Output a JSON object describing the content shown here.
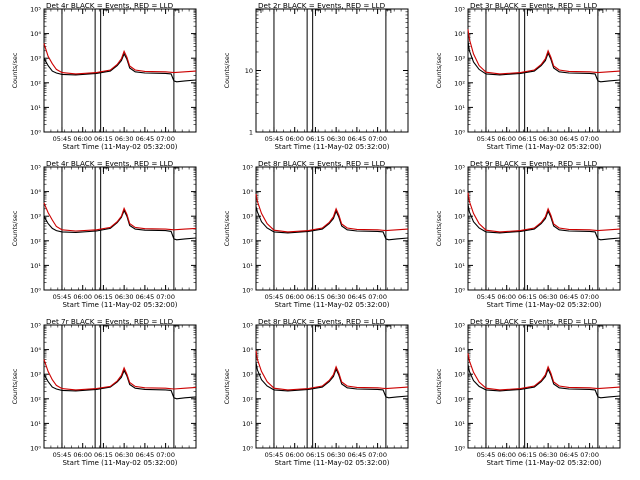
{
  "colors": {
    "events": "#000000",
    "lld": "#cc0000",
    "background": "#ffffff"
  },
  "common": {
    "xlabel": "Start Time (11-May-02 05:32:00)",
    "ylabel": "Counts/sec",
    "xticks": [
      "05:45",
      "06:00",
      "06:15",
      "06:30",
      "06:45",
      "07:00"
    ],
    "xrange": [
      "05:32",
      "07:22"
    ]
  },
  "chart_data": [
    {
      "type": "line",
      "title": "Det 4r BLACK = Events, RED = LLD",
      "yscale": "log",
      "ylim": [
        1,
        100000
      ],
      "yticks": [
        "10⁰",
        "10¹",
        "10²",
        "10³",
        "10⁴",
        "10⁵"
      ],
      "vlines": [
        "05:45",
        "06:09",
        "06:13",
        "07:06"
      ],
      "markers": [
        "06:15",
        "07:06"
      ],
      "series": [
        {
          "name": "Events",
          "color": "#000000",
          "x": [
            "05:32",
            "05:35",
            "05:38",
            "05:41",
            "05:45",
            "05:55",
            "06:10",
            "06:20",
            "06:25",
            "06:28",
            "06:30",
            "06:32",
            "06:34",
            "06:38",
            "06:45",
            "07:00",
            "07:04",
            "07:06",
            "07:08",
            "07:14",
            "07:22"
          ],
          "y": [
            1000,
            500,
            300,
            250,
            220,
            210,
            240,
            300,
            500,
            800,
            1500,
            900,
            400,
            280,
            250,
            240,
            230,
            120,
            110,
            120,
            130
          ]
        },
        {
          "name": "LLD",
          "color": "#cc0000",
          "x": [
            "05:32",
            "05:35",
            "05:38",
            "05:41",
            "05:45",
            "05:55",
            "06:10",
            "06:20",
            "06:25",
            "06:28",
            "06:30",
            "06:32",
            "06:34",
            "06:38",
            "06:45",
            "07:00",
            "07:06",
            "07:14",
            "07:22"
          ],
          "y": [
            4000,
            1200,
            600,
            350,
            260,
            230,
            260,
            330,
            560,
            950,
            1900,
            1100,
            480,
            330,
            290,
            280,
            260,
            280,
            300
          ]
        }
      ]
    },
    {
      "type": "line",
      "title": "Det 2r BLACK = Events, RED = LLD",
      "yscale": "log",
      "ylim": [
        1,
        100
      ],
      "yticks": [
        "1",
        "10"
      ],
      "vlines": [
        "05:45",
        "06:09",
        "06:13",
        "07:06"
      ],
      "markers": [
        "05:32",
        "06:15",
        "07:06"
      ],
      "series": []
    },
    {
      "type": "line",
      "title": "Det 3r BLACK = Events, RED = LLD",
      "yscale": "log",
      "ylim": [
        1,
        100000
      ],
      "yticks": [
        "10⁰",
        "10¹",
        "10²",
        "10³",
        "10⁴",
        "10⁵"
      ],
      "vlines": [
        "05:45",
        "06:09",
        "06:13",
        "07:06"
      ],
      "markers": [
        "06:15",
        "07:06"
      ],
      "series": [
        {
          "name": "Events",
          "color": "#000000",
          "x": [
            "05:32",
            "05:33",
            "05:36",
            "05:40",
            "05:45",
            "05:55",
            "06:10",
            "06:20",
            "06:25",
            "06:28",
            "06:30",
            "06:32",
            "06:34",
            "06:38",
            "06:45",
            "07:00",
            "07:04",
            "07:06",
            "07:08",
            "07:14",
            "07:22"
          ],
          "y": [
            5000,
            2000,
            700,
            350,
            230,
            210,
            240,
            300,
            500,
            800,
            1600,
            900,
            400,
            280,
            250,
            240,
            230,
            120,
            110,
            120,
            130
          ]
        },
        {
          "name": "LLD",
          "color": "#cc0000",
          "x": [
            "05:32",
            "05:33",
            "05:36",
            "05:40",
            "05:45",
            "05:55",
            "06:10",
            "06:20",
            "06:25",
            "06:28",
            "06:30",
            "06:32",
            "06:34",
            "06:38",
            "06:45",
            "07:00",
            "07:06",
            "07:14",
            "07:22"
          ],
          "y": [
            15000,
            6000,
            1500,
            500,
            270,
            230,
            260,
            330,
            560,
            950,
            2000,
            1100,
            480,
            330,
            290,
            280,
            260,
            280,
            300
          ]
        }
      ]
    },
    {
      "type": "line",
      "title": "Det 4r BLACK = Events, RED = LLD",
      "yscale": "log",
      "ylim": [
        1,
        100000
      ],
      "yticks": [
        "10⁰",
        "10¹",
        "10²",
        "10³",
        "10⁴",
        "10⁵"
      ],
      "vlines": [
        "05:45",
        "06:09",
        "06:13",
        "07:06"
      ],
      "markers": [
        "06:15",
        "07:06"
      ],
      "series": [
        {
          "name": "Events",
          "color": "#000000",
          "x": [
            "05:32",
            "05:35",
            "05:38",
            "05:41",
            "05:45",
            "05:55",
            "06:10",
            "06:20",
            "06:25",
            "06:28",
            "06:30",
            "06:32",
            "06:34",
            "06:38",
            "06:45",
            "07:00",
            "07:04",
            "07:06",
            "07:08",
            "07:14",
            "07:22"
          ],
          "y": [
            1000,
            500,
            320,
            260,
            230,
            220,
            250,
            320,
            550,
            900,
            1700,
            1000,
            420,
            300,
            270,
            260,
            240,
            120,
            110,
            120,
            130
          ]
        },
        {
          "name": "LLD",
          "color": "#cc0000",
          "x": [
            "05:32",
            "05:35",
            "05:38",
            "05:41",
            "05:45",
            "05:55",
            "06:10",
            "06:20",
            "06:25",
            "06:28",
            "06:30",
            "06:32",
            "06:34",
            "06:38",
            "06:45",
            "07:00",
            "07:06",
            "07:14",
            "07:22"
          ],
          "y": [
            3500,
            1400,
            700,
            380,
            280,
            250,
            280,
            350,
            600,
            1000,
            2100,
            1200,
            500,
            350,
            310,
            300,
            280,
            300,
            320
          ]
        }
      ]
    },
    {
      "type": "line",
      "title": "Det 8r BLACK = Events, RED = LLD",
      "yscale": "log",
      "ylim": [
        1,
        100000
      ],
      "yticks": [
        "10⁰",
        "10¹",
        "10²",
        "10³",
        "10⁴",
        "10⁵"
      ],
      "vlines": [
        "05:45",
        "06:09",
        "06:13",
        "07:06"
      ],
      "markers": [
        "06:15",
        "07:06"
      ],
      "series": [
        {
          "name": "Events",
          "color": "#000000",
          "x": [
            "05:32",
            "05:33",
            "05:36",
            "05:40",
            "05:45",
            "05:55",
            "06:10",
            "06:20",
            "06:25",
            "06:28",
            "06:30",
            "06:32",
            "06:34",
            "06:38",
            "06:45",
            "07:00",
            "07:04",
            "07:06",
            "07:08",
            "07:14",
            "07:22"
          ],
          "y": [
            2500,
            1500,
            600,
            330,
            230,
            210,
            240,
            300,
            500,
            800,
            1600,
            900,
            400,
            280,
            250,
            240,
            230,
            120,
            110,
            120,
            130
          ]
        },
        {
          "name": "LLD",
          "color": "#cc0000",
          "x": [
            "05:32",
            "05:33",
            "05:36",
            "05:40",
            "05:45",
            "05:55",
            "06:10",
            "06:20",
            "06:25",
            "06:28",
            "06:30",
            "06:32",
            "06:34",
            "06:38",
            "06:45",
            "07:00",
            "07:06",
            "07:14",
            "07:22"
          ],
          "y": [
            8000,
            4000,
            1300,
            500,
            270,
            230,
            260,
            330,
            560,
            950,
            2000,
            1100,
            480,
            330,
            290,
            280,
            260,
            280,
            300
          ]
        }
      ]
    },
    {
      "type": "line",
      "title": "Det 9r BLACK = Events, RED = LLD",
      "yscale": "log",
      "ylim": [
        1,
        100000
      ],
      "yticks": [
        "10⁰",
        "10¹",
        "10²",
        "10³",
        "10⁴",
        "10⁵"
      ],
      "vlines": [
        "05:45",
        "06:09",
        "06:13",
        "07:06"
      ],
      "markers": [
        "06:15",
        "07:06"
      ],
      "series": [
        {
          "name": "Events",
          "color": "#000000",
          "x": [
            "05:32",
            "05:33",
            "05:36",
            "05:40",
            "05:45",
            "05:55",
            "06:10",
            "06:20",
            "06:25",
            "06:28",
            "06:30",
            "06:32",
            "06:34",
            "06:38",
            "06:45",
            "07:00",
            "07:04",
            "07:06",
            "07:08",
            "07:14",
            "07:22"
          ],
          "y": [
            3000,
            1500,
            600,
            330,
            230,
            210,
            240,
            300,
            500,
            800,
            1600,
            900,
            400,
            280,
            250,
            240,
            230,
            120,
            110,
            120,
            130
          ]
        },
        {
          "name": "LLD",
          "color": "#cc0000",
          "x": [
            "05:32",
            "05:33",
            "05:36",
            "05:40",
            "05:45",
            "05:55",
            "06:10",
            "06:20",
            "06:25",
            "06:28",
            "06:30",
            "06:32",
            "06:34",
            "06:38",
            "06:45",
            "07:00",
            "07:06",
            "07:14",
            "07:22"
          ],
          "y": [
            9000,
            4000,
            1300,
            500,
            270,
            230,
            260,
            330,
            560,
            950,
            2000,
            1100,
            480,
            330,
            290,
            280,
            260,
            280,
            300
          ]
        }
      ]
    },
    {
      "type": "line",
      "title": "Det 7r BLACK = Events, RED = LLD",
      "yscale": "log",
      "ylim": [
        1,
        100000
      ],
      "yticks": [
        "10⁰",
        "10¹",
        "10²",
        "10³",
        "10⁴",
        "10⁵"
      ],
      "vlines": [
        "05:45",
        "06:09",
        "06:13",
        "07:06"
      ],
      "markers": [
        "06:15",
        "07:06"
      ],
      "series": [
        {
          "name": "Events",
          "color": "#000000",
          "x": [
            "05:32",
            "05:35",
            "05:38",
            "05:41",
            "05:45",
            "05:55",
            "06:10",
            "06:20",
            "06:25",
            "06:28",
            "06:30",
            "06:32",
            "06:34",
            "06:38",
            "06:45",
            "07:00",
            "07:04",
            "07:06",
            "07:08",
            "07:14",
            "07:22"
          ],
          "y": [
            1000,
            500,
            300,
            250,
            220,
            210,
            240,
            300,
            480,
            750,
            1400,
            850,
            380,
            270,
            240,
            230,
            220,
            110,
            100,
            110,
            120
          ]
        },
        {
          "name": "LLD",
          "color": "#cc0000",
          "x": [
            "05:32",
            "05:35",
            "05:38",
            "05:41",
            "05:45",
            "05:55",
            "06:10",
            "06:20",
            "06:25",
            "06:28",
            "06:30",
            "06:32",
            "06:34",
            "06:38",
            "06:45",
            "07:00",
            "07:06",
            "07:14",
            "07:22"
          ],
          "y": [
            4000,
            1300,
            600,
            350,
            260,
            230,
            260,
            320,
            530,
            900,
            1800,
            1000,
            460,
            320,
            280,
            270,
            250,
            270,
            290
          ]
        }
      ]
    },
    {
      "type": "line",
      "title": "Det 8r BLACK = Events, RED = LLD",
      "yscale": "log",
      "ylim": [
        1,
        100000
      ],
      "yticks": [
        "10⁰",
        "10¹",
        "10²",
        "10³",
        "10⁴",
        "10⁵"
      ],
      "vlines": [
        "05:45",
        "06:09",
        "06:13",
        "07:06"
      ],
      "markers": [
        "06:15",
        "07:06"
      ],
      "series": [
        {
          "name": "Events",
          "color": "#000000",
          "x": [
            "05:32",
            "05:33",
            "05:36",
            "05:40",
            "05:45",
            "05:55",
            "06:10",
            "06:20",
            "06:25",
            "06:28",
            "06:30",
            "06:32",
            "06:34",
            "06:38",
            "06:45",
            "07:00",
            "07:04",
            "07:06",
            "07:08",
            "07:14",
            "07:22"
          ],
          "y": [
            3000,
            1500,
            600,
            330,
            230,
            210,
            240,
            300,
            500,
            800,
            1600,
            900,
            400,
            280,
            250,
            240,
            230,
            120,
            110,
            120,
            130
          ]
        },
        {
          "name": "LLD",
          "color": "#cc0000",
          "x": [
            "05:32",
            "05:33",
            "05:36",
            "05:40",
            "05:45",
            "05:55",
            "06:10",
            "06:20",
            "06:25",
            "06:28",
            "06:30",
            "06:32",
            "06:34",
            "06:38",
            "06:45",
            "07:00",
            "07:06",
            "07:14",
            "07:22"
          ],
          "y": [
            9000,
            4000,
            1300,
            500,
            270,
            230,
            260,
            330,
            560,
            950,
            2000,
            1100,
            480,
            330,
            290,
            280,
            260,
            280,
            300
          ]
        }
      ]
    },
    {
      "type": "line",
      "title": "Det 9r BLACK = Events, RED = LLD",
      "yscale": "log",
      "ylim": [
        1,
        100000
      ],
      "yticks": [
        "10⁰",
        "10¹",
        "10²",
        "10³",
        "10⁴",
        "10⁵"
      ],
      "vlines": [
        "05:45",
        "06:09",
        "06:13",
        "07:06"
      ],
      "markers": [
        "06:15",
        "07:06"
      ],
      "series": [
        {
          "name": "Events",
          "color": "#000000",
          "x": [
            "05:32",
            "05:33",
            "05:36",
            "05:40",
            "05:45",
            "05:55",
            "06:10",
            "06:20",
            "06:25",
            "06:28",
            "06:30",
            "06:32",
            "06:34",
            "06:38",
            "06:45",
            "07:00",
            "07:04",
            "07:06",
            "07:08",
            "07:14",
            "07:22"
          ],
          "y": [
            2500,
            1300,
            550,
            320,
            230,
            210,
            240,
            300,
            500,
            800,
            1600,
            900,
            400,
            280,
            250,
            240,
            230,
            120,
            110,
            120,
            130
          ]
        },
        {
          "name": "LLD",
          "color": "#cc0000",
          "x": [
            "05:32",
            "05:33",
            "05:36",
            "05:40",
            "05:45",
            "05:55",
            "06:10",
            "06:20",
            "06:25",
            "06:28",
            "06:30",
            "06:32",
            "06:34",
            "06:38",
            "06:45",
            "07:00",
            "07:06",
            "07:14",
            "07:22"
          ],
          "y": [
            7000,
            3500,
            1200,
            480,
            270,
            230,
            260,
            330,
            560,
            950,
            2000,
            1100,
            480,
            330,
            290,
            280,
            260,
            280,
            300
          ]
        }
      ]
    }
  ]
}
